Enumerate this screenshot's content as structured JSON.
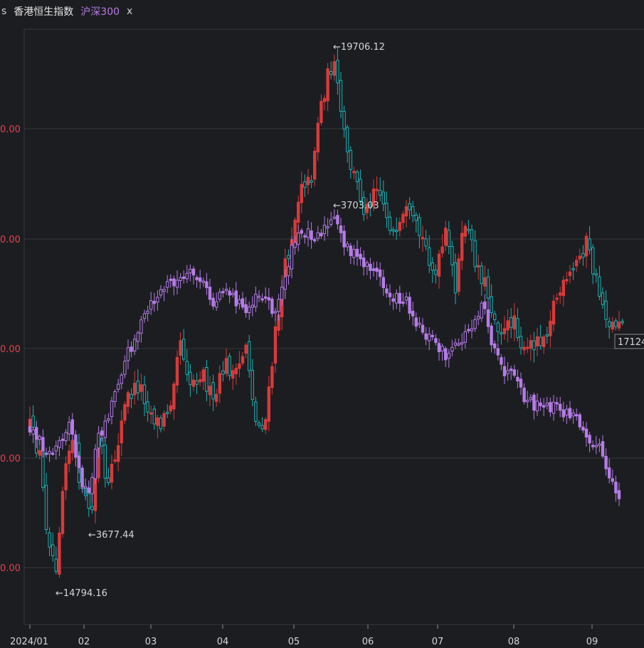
{
  "legend": {
    "edge_glyph": "s",
    "main_name": "香港恒生指数",
    "compare_name": "沪深300",
    "remove_label": "x"
  },
  "colors": {
    "background": "#1c1d21",
    "up": "#d83a3a",
    "down": "#1bb3b3",
    "compare": "#b57ce6",
    "grid": "#34363c",
    "axis_label": "#e0434f"
  },
  "chart_data": {
    "type": "candlestick",
    "x_ticks": [
      "2024/01",
      "02",
      "03",
      "04",
      "05",
      "06",
      "07",
      "08",
      "09"
    ],
    "y_tick_labels": [
      "0.00",
      "0.00",
      "0.00",
      "0.00",
      "0.00"
    ],
    "grid": true,
    "annotations": {
      "main_high": "←19706.12",
      "main_low": "←14794.16",
      "compare_high": "←3703.03",
      "compare_low": "←3677.44",
      "last_price_label": "17124"
    },
    "series": [
      {
        "name": "香港恒生指数",
        "key_points": [
          {
            "date": "2024-01-02",
            "close": 16700
          },
          {
            "date": "2024-01-22",
            "low": 14794.16
          },
          {
            "date": "2024-02-20",
            "close": 16200
          },
          {
            "date": "2024-03-08",
            "close": 16400
          },
          {
            "date": "2024-04-19",
            "close": 16200
          },
          {
            "date": "2024-05-20",
            "high": 19706.12
          },
          {
            "date": "2024-06-28",
            "close": 17700
          },
          {
            "date": "2024-08-05",
            "close": 16700
          },
          {
            "date": "2024-08-30",
            "close": 17900
          },
          {
            "date": "2024-09-13",
            "close": 17124
          }
        ]
      },
      {
        "name": "沪深300",
        "key_points": [
          {
            "date": "2024-01-02",
            "close": 3420
          },
          {
            "date": "2024-02-05",
            "low": 3677.44
          },
          {
            "date": "2024-03-12",
            "close": 3560
          },
          {
            "date": "2024-04-12",
            "close": 3540
          },
          {
            "date": "2024-05-15",
            "high": 3703.03
          },
          {
            "date": "2024-07-05",
            "close": 3440
          },
          {
            "date": "2024-08-15",
            "close": 3330
          },
          {
            "date": "2024-09-13",
            "close": 3160
          }
        ]
      }
    ]
  }
}
